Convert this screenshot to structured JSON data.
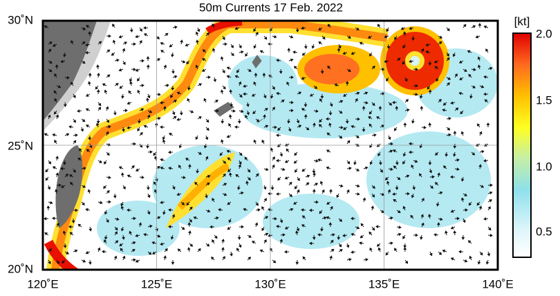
{
  "title": "50m Currents  17 Feb. 2022",
  "lon_labels": [
    "120˚E",
    "125˚E",
    "130˚E",
    "135˚E",
    "140˚E"
  ],
  "lat_labels": [
    "30˚N",
    "25˚N",
    "20˚N"
  ],
  "colorbar": {
    "unit": "[kt]",
    "labels": [
      "2.0",
      "1.5",
      "1.0",
      "0.5"
    ]
  }
}
